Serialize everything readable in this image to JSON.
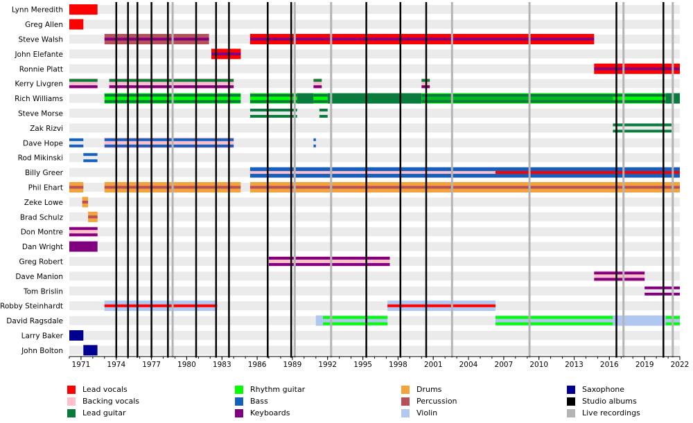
{
  "chart_data": {
    "type": "timeline",
    "title": "",
    "x_range": [
      1970,
      2022
    ],
    "x_ticks": [
      1971,
      1974,
      1977,
      1980,
      1983,
      1986,
      1989,
      1992,
      1995,
      1998,
      2001,
      2004,
      2007,
      2010,
      2013,
      2016,
      2019,
      2022
    ],
    "roles": {
      "lead_vocals": {
        "label": "Lead vocals",
        "color": "#FF0000"
      },
      "backing_vocals": {
        "label": "Backing vocals",
        "color": "#FFC0CB"
      },
      "lead_guitar": {
        "label": "Lead guitar",
        "color": "#097C3D"
      },
      "rhythm_guitar": {
        "label": "Rhythm guitar",
        "color": "#00FF00"
      },
      "bass": {
        "label": "Bass",
        "color": "#1560BD"
      },
      "keyboards": {
        "label": "Keyboards",
        "color": "#800080"
      },
      "drums": {
        "label": "Drums",
        "color": "#F4A23A"
      },
      "percussion": {
        "label": "Percussion",
        "color": "#B8505A"
      },
      "violin": {
        "label": "Violin",
        "color": "#B0C8F0"
      },
      "saxophone": {
        "label": "Saxophone",
        "color": "#000090"
      },
      "studio_albums": {
        "label": "Studio albums",
        "color": "#000000"
      },
      "live_recordings": {
        "label": "Live recordings",
        "color": "#B4B4B4"
      }
    },
    "legend_columns": [
      [
        "lead_vocals",
        "backing_vocals",
        "lead_guitar"
      ],
      [
        "rhythm_guitar",
        "bass",
        "keyboards"
      ],
      [
        "drums",
        "percussion",
        "violin"
      ],
      [
        "saxophone",
        "studio_albums",
        "live_recordings"
      ]
    ],
    "studio_albums": [
      1974.0,
      1975.0,
      1975.8,
      1977.0,
      1978.4,
      1980.8,
      1982.5,
      1983.6,
      1986.9,
      1988.9,
      1995.3,
      1998.2,
      2000.4,
      2016.6,
      2020.6
    ],
    "live_recordings": [
      1978.8,
      1989.2,
      1992.3,
      2002.6,
      2009.2,
      2017.2,
      2021.4
    ],
    "members": [
      {
        "name": "Lynn Meredith",
        "segments": [
          {
            "start": 1970.0,
            "end": 1972.4,
            "base": "lead_vocals"
          }
        ]
      },
      {
        "name": "Greg Allen",
        "segments": [
          {
            "start": 1970.0,
            "end": 1971.2,
            "base": "lead_vocals"
          }
        ]
      },
      {
        "name": "Steve Walsh",
        "segments": [
          {
            "start": 1973.0,
            "end": 1981.9,
            "base": "percussion",
            "stripe": "keyboards"
          },
          {
            "start": 1985.4,
            "end": 2014.7,
            "base": "lead_vocals",
            "stripe": "keyboards"
          }
        ]
      },
      {
        "name": "John Elefante",
        "segments": [
          {
            "start": 1982.1,
            "end": 1984.6,
            "base": "lead_vocals",
            "stripe": "keyboards"
          }
        ]
      },
      {
        "name": "Ronnie Platt",
        "segments": [
          {
            "start": 2014.7,
            "end": 2022.0,
            "base": "lead_vocals",
            "stripe": "keyboards"
          }
        ]
      },
      {
        "name": "Kerry Livgren",
        "segments": [
          {
            "start": 1970.0,
            "end": 1972.4,
            "base": "backing_vocals",
            "lines": [
              "lead_guitar",
              "keyboards"
            ]
          },
          {
            "start": 1973.4,
            "end": 1984.0,
            "base": "backing_vocals",
            "lines": [
              "lead_guitar",
              "keyboards"
            ]
          },
          {
            "start": 1990.8,
            "end": 1991.5,
            "base": "backing_vocals",
            "lines": [
              "lead_guitar",
              "keyboards"
            ]
          },
          {
            "start": 2000.0,
            "end": 2000.7,
            "base": "backing_vocals",
            "lines": [
              "lead_guitar",
              "keyboards"
            ]
          }
        ]
      },
      {
        "name": "Rich Williams",
        "segments": [
          {
            "start": 1973.0,
            "end": 1984.6,
            "base": "rhythm_guitar",
            "lines": [
              "lead_guitar",
              "lead_guitar"
            ]
          },
          {
            "start": 1985.4,
            "end": 1989.4,
            "base": "rhythm_guitar",
            "lines": [
              "lead_guitar",
              "lead_guitar"
            ]
          },
          {
            "start": 1989.4,
            "end": 1990.8,
            "base": "lead_guitar"
          },
          {
            "start": 1990.8,
            "end": 1992.0,
            "base": "rhythm_guitar",
            "lines": [
              "lead_guitar",
              "lead_guitar"
            ]
          },
          {
            "start": 1992.0,
            "end": 2000.0,
            "base": "lead_guitar"
          },
          {
            "start": 2000.0,
            "end": 2016.3,
            "base": "rhythm_guitar",
            "lines": [
              "lead_guitar",
              "lead_guitar"
            ],
            "tint": "lead_guitar"
          },
          {
            "start": 2016.3,
            "end": 2020.8,
            "base": "rhythm_guitar",
            "lines": [
              "lead_guitar",
              "lead_guitar"
            ]
          },
          {
            "start": 2020.8,
            "end": 2022.0,
            "base": "lead_guitar"
          }
        ]
      },
      {
        "name": "Steve Morse",
        "segments": [
          {
            "start": 1985.4,
            "end": 1989.4,
            "lines": [
              "lead_guitar",
              "lead_guitar"
            ]
          },
          {
            "start": 1991.3,
            "end": 1992.0,
            "lines": [
              "lead_guitar",
              "lead_guitar"
            ]
          }
        ]
      },
      {
        "name": "Zak Rizvi",
        "segments": [
          {
            "start": 2016.3,
            "end": 2021.3,
            "lines": [
              "lead_guitar",
              "lead_guitar"
            ]
          }
        ]
      },
      {
        "name": "Dave Hope",
        "segments": [
          {
            "start": 1970.0,
            "end": 1971.2,
            "lines": [
              "bass",
              "bass"
            ]
          },
          {
            "start": 1973.0,
            "end": 1984.0,
            "base": "backing_vocals",
            "lines": [
              "bass",
              "bass"
            ]
          },
          {
            "start": 1990.8,
            "end": 1991.0,
            "lines": [
              "bass",
              "bass"
            ]
          }
        ]
      },
      {
        "name": "Rod Mikinski",
        "segments": [
          {
            "start": 1971.2,
            "end": 1972.4,
            "lines": [
              "bass",
              "bass"
            ]
          }
        ]
      },
      {
        "name": "Billy Greer",
        "segments": [
          {
            "start": 1985.4,
            "end": 2006.3,
            "base": "bass",
            "stripe": "backing_vocals"
          },
          {
            "start": 2006.3,
            "end": 2022.0,
            "base": "bass",
            "stripe": "lead_vocals"
          }
        ]
      },
      {
        "name": "Phil Ehart",
        "segments": [
          {
            "start": 1970.0,
            "end": 1971.2,
            "base": "drums",
            "stripe": "percussion"
          },
          {
            "start": 1973.0,
            "end": 1984.6,
            "base": "drums",
            "stripe": "percussion"
          },
          {
            "start": 1985.4,
            "end": 2022.0,
            "base": "drums",
            "stripe": "percussion"
          }
        ]
      },
      {
        "name": "Zeke Lowe",
        "segments": [
          {
            "start": 1971.1,
            "end": 1971.6,
            "base": "drums",
            "stripe": "percussion"
          }
        ]
      },
      {
        "name": "Brad Schulz",
        "segments": [
          {
            "start": 1971.6,
            "end": 1972.4,
            "base": "drums",
            "stripe": "percussion"
          }
        ]
      },
      {
        "name": "Don Montre",
        "segments": [
          {
            "start": 1970.0,
            "end": 1972.4,
            "base": "backing_vocals",
            "lines": [
              "keyboards",
              "keyboards"
            ]
          }
        ]
      },
      {
        "name": "Dan Wright",
        "segments": [
          {
            "start": 1970.0,
            "end": 1972.4,
            "base": "keyboards"
          }
        ]
      },
      {
        "name": "Greg Robert",
        "segments": [
          {
            "start": 1987.0,
            "end": 1997.3,
            "base": "backing_vocals",
            "lines": [
              "keyboards",
              "keyboards"
            ]
          }
        ]
      },
      {
        "name": "Dave Manion",
        "segments": [
          {
            "start": 2014.7,
            "end": 2019.0,
            "base": "backing_vocals",
            "lines": [
              "keyboards",
              "keyboards"
            ]
          }
        ]
      },
      {
        "name": "Tom Brislin",
        "segments": [
          {
            "start": 2019.0,
            "end": 2022.0,
            "lines": [
              "keyboards",
              "keyboards"
            ]
          }
        ]
      },
      {
        "name": "Robby Steinhardt",
        "segments": [
          {
            "start": 1973.0,
            "end": 1982.6,
            "base": "violin",
            "stripe": "lead_vocals"
          },
          {
            "start": 1997.1,
            "end": 2006.3,
            "base": "violin",
            "stripe": "lead_vocals"
          }
        ]
      },
      {
        "name": "David Ragsdale",
        "segments": [
          {
            "start": 1991.0,
            "end": 1991.6,
            "base": "violin"
          },
          {
            "start": 1991.6,
            "end": 1997.1,
            "base": "violin",
            "lines": [
              "rhythm_guitar",
              "rhythm_guitar"
            ]
          },
          {
            "start": 2006.3,
            "end": 2016.3,
            "base": "violin",
            "lines": [
              "rhythm_guitar",
              "rhythm_guitar"
            ]
          },
          {
            "start": 2016.3,
            "end": 2020.8,
            "base": "violin"
          },
          {
            "start": 2020.8,
            "end": 2022.0,
            "base": "violin",
            "lines": [
              "rhythm_guitar",
              "rhythm_guitar"
            ]
          }
        ]
      },
      {
        "name": "Larry Baker",
        "segments": [
          {
            "start": 1970.0,
            "end": 1971.2,
            "base": "saxophone"
          }
        ]
      },
      {
        "name": "John Bolton",
        "segments": [
          {
            "start": 1971.2,
            "end": 1972.4,
            "base": "saxophone"
          }
        ]
      }
    ]
  }
}
